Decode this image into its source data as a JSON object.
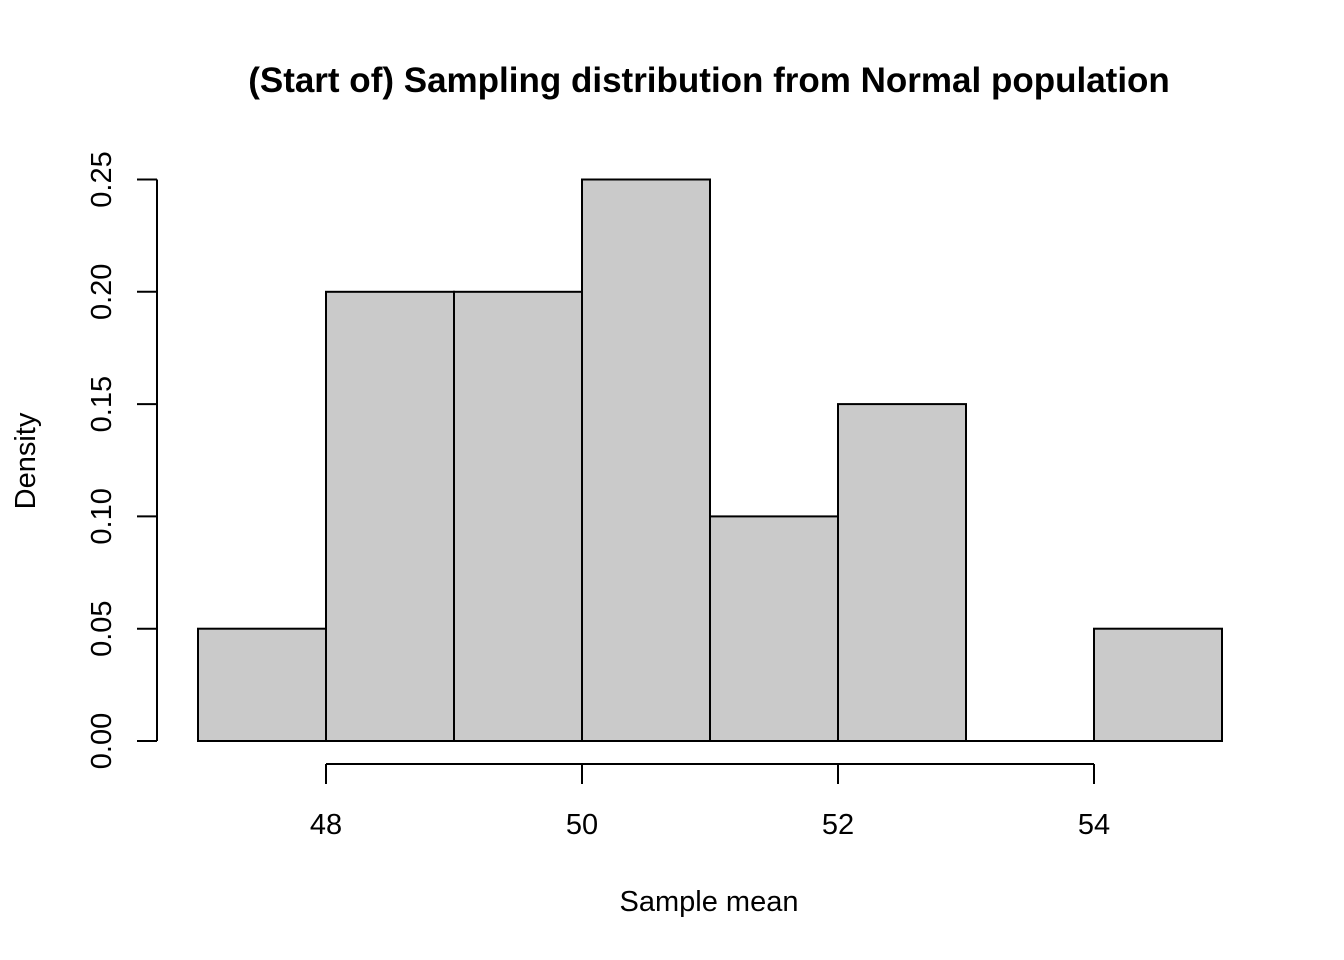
{
  "chart_data": {
    "type": "bar",
    "title": "(Start of) Sampling distribution from Normal population",
    "xlabel": "Sample mean",
    "ylabel": "Density",
    "bins": [
      {
        "start": 47,
        "end": 48,
        "density": 0.05
      },
      {
        "start": 48,
        "end": 49,
        "density": 0.2
      },
      {
        "start": 49,
        "end": 50,
        "density": 0.2
      },
      {
        "start": 50,
        "end": 51,
        "density": 0.25
      },
      {
        "start": 51,
        "end": 52,
        "density": 0.1
      },
      {
        "start": 52,
        "end": 53,
        "density": 0.15
      },
      {
        "start": 53,
        "end": 54,
        "density": 0.0
      },
      {
        "start": 54,
        "end": 55,
        "density": 0.05
      }
    ],
    "xlim": [
      47,
      55
    ],
    "ylim": [
      0,
      0.25
    ],
    "x_ticks": [
      48,
      50,
      52,
      54
    ],
    "x_tick_labels": [
      "48",
      "50",
      "52",
      "54"
    ],
    "y_ticks": [
      0,
      0.05,
      0.1,
      0.15,
      0.2,
      0.25
    ],
    "y_tick_labels": [
      "0.00",
      "0.05",
      "0.10",
      "0.15",
      "0.20",
      "0.25"
    ],
    "bar_fill": "#cacaca",
    "grid": false,
    "legend": null
  }
}
